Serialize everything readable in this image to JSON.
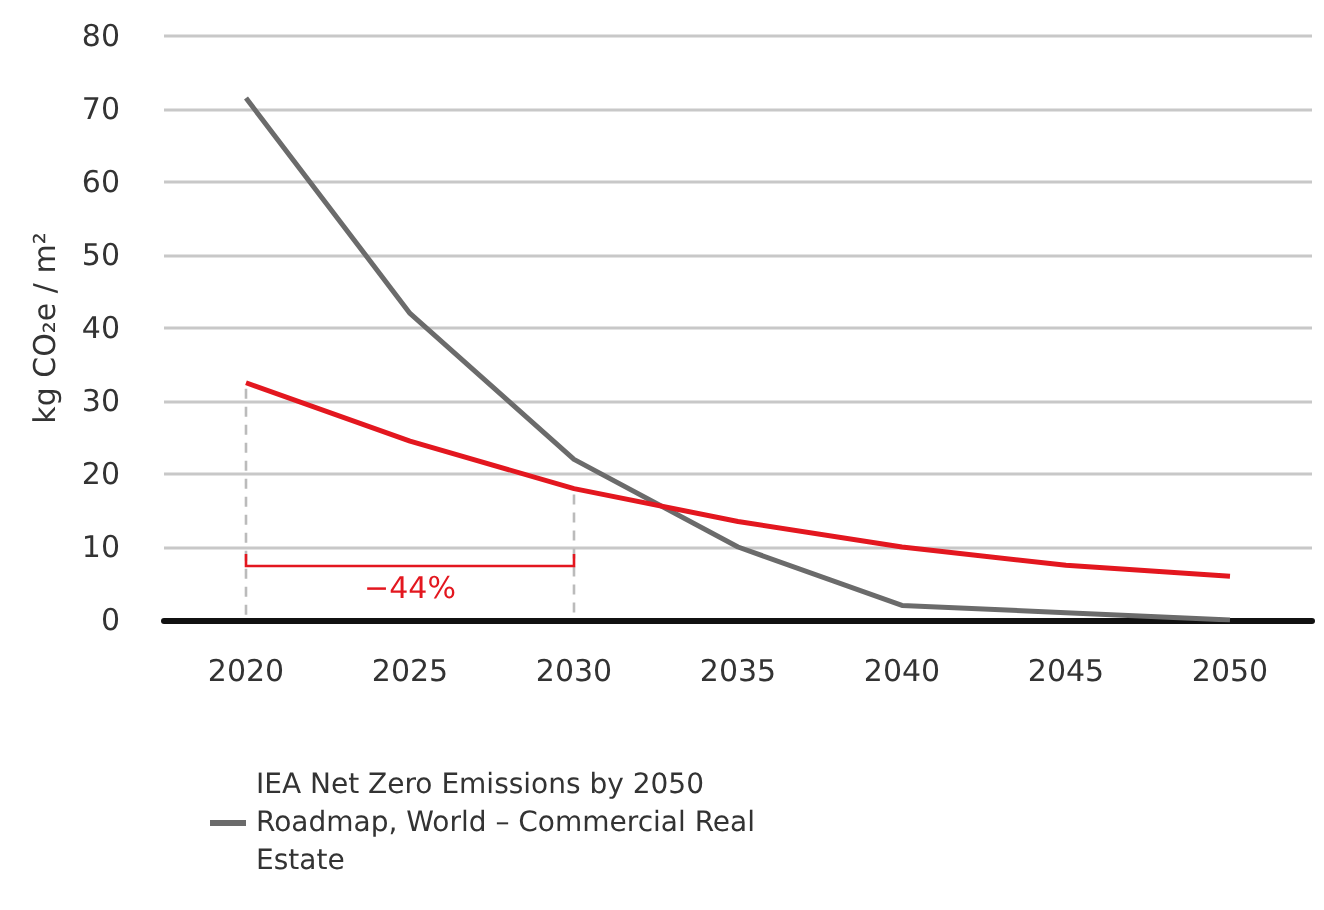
{
  "chart_data": {
    "type": "line",
    "ylabel": "kg CO₂e / m²",
    "categories": [
      "2020",
      "2025",
      "2030",
      "2035",
      "2040",
      "2045",
      "2050"
    ],
    "series": [
      {
        "name": "IEA Net Zero Emissions by 2050 Roadmap, World – Commercial Real Estate",
        "color": "#6b6b6b",
        "values": [
          71.5,
          42,
          22,
          10,
          2,
          1,
          0
        ]
      },
      {
        "color": "#e3171f",
        "values": [
          32.5,
          24.5,
          18,
          13.5,
          10,
          7.5,
          6
        ]
      }
    ],
    "ylim": [
      0,
      80
    ],
    "yticks": [
      0,
      10,
      20,
      30,
      40,
      50,
      60,
      70,
      80
    ],
    "grid": "y",
    "legend": "bottom",
    "marker": "none",
    "line_style": "solid",
    "annotations": [
      "−44%"
    ]
  }
}
